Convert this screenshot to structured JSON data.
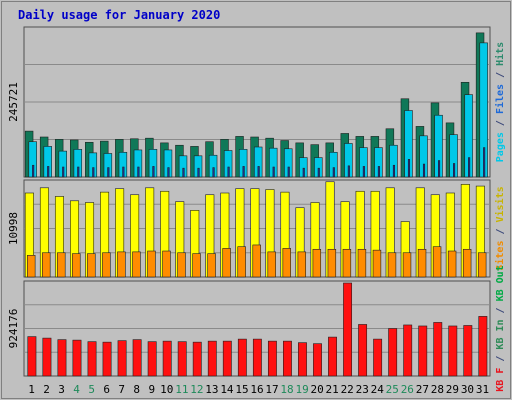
{
  "chart_data": {
    "type": "bar",
    "title": "Daily usage for January 2020",
    "categories": [
      "1",
      "2",
      "3",
      "4",
      "5",
      "6",
      "7",
      "8",
      "9",
      "10",
      "11",
      "12",
      "13",
      "14",
      "15",
      "16",
      "17",
      "18",
      "19",
      "20",
      "21",
      "22",
      "23",
      "24",
      "25",
      "26",
      "27",
      "28",
      "29",
      "30",
      "31"
    ],
    "weekend_days": [
      "4",
      "5",
      "11",
      "12",
      "18",
      "19",
      "25",
      "26"
    ],
    "panels": [
      {
        "id": "hits",
        "scale_label": "245721",
        "scale_max": 245721,
        "ylim": [
          0,
          255000
        ],
        "legend": [
          {
            "text": "Pages",
            "color": "#00c8e8"
          },
          {
            "text": " / ",
            "color": "#3d4a7a"
          },
          {
            "text": "Files",
            "color": "#1e6ad8"
          },
          {
            "text": " / ",
            "color": "#3d4a7a"
          },
          {
            "text": "Hits",
            "color": "#2e8b6e"
          }
        ],
        "series": [
          {
            "name": "Hits",
            "color": "#107858",
            "values": [
              78000,
              68000,
              64000,
              63000,
              59000,
              61000,
              64000,
              65000,
              66000,
              58000,
              54000,
              52000,
              60000,
              64000,
              69000,
              68000,
              66000,
              62000,
              58000,
              55000,
              58000,
              74000,
              69000,
              69000,
              82000,
              133000,
              86000,
              126000,
              92000,
              161000,
              245000
            ]
          },
          {
            "name": "Files",
            "color": "#00c8e8",
            "values": [
              60000,
              52000,
              44000,
              47000,
              41000,
              40000,
              42000,
              46000,
              47000,
              46000,
              36000,
              36000,
              37000,
              45000,
              47000,
              51000,
              49000,
              48000,
              33000,
              33000,
              42000,
              57000,
              50000,
              50000,
              54000,
              113000,
              70000,
              105000,
              72000,
              140000,
              228000
            ]
          },
          {
            "name": "Pages",
            "color": "#1c30a0",
            "values": [
              20000,
              18000,
              17000,
              17000,
              16000,
              16000,
              17000,
              17000,
              18000,
              16000,
              15000,
              15000,
              16000,
              17000,
              18000,
              18000,
              17000,
              17000,
              15000,
              15000,
              16000,
              19000,
              18000,
              18000,
              20000,
              30000,
              22000,
              28000,
              23000,
              33000,
              50000
            ]
          }
        ]
      },
      {
        "id": "visits",
        "scale_label": "10998",
        "scale_max": 10998,
        "ylim": [
          0,
          11200
        ],
        "legend": [
          {
            "text": "Sites",
            "color": "#f08c00"
          },
          {
            "text": " / ",
            "color": "#3d4a7a"
          },
          {
            "text": "Visits",
            "color": "#c8b400"
          }
        ],
        "series": [
          {
            "name": "Visits",
            "color": "#ffff00",
            "values": [
              9700,
              10300,
              9300,
              8800,
              8600,
              9800,
              10200,
              9500,
              10300,
              9900,
              8700,
              7700,
              9500,
              9700,
              10200,
              10200,
              10100,
              9800,
              8000,
              8600,
              10998,
              8700,
              9900,
              9900,
              10300,
              6400,
              10300,
              9500,
              9700,
              10700,
              10500
            ]
          },
          {
            "name": "Sites",
            "color": "#ff8c00",
            "values": [
              2500,
              2800,
              2800,
              2700,
              2700,
              2800,
              2900,
              2900,
              3000,
              3000,
              2800,
              2700,
              2700,
              3300,
              3500,
              3700,
              2900,
              3300,
              2900,
              3200,
              3200,
              3200,
              3200,
              3100,
              2800,
              2800,
              3200,
              3500,
              3000,
              3200,
              2800
            ]
          }
        ]
      },
      {
        "id": "kbytes",
        "scale_label": "924176",
        "scale_max": 924176,
        "ylim": [
          0,
          940000
        ],
        "legend": [
          {
            "text": "KB F",
            "color": "#e8141e"
          },
          {
            "text": " / ",
            "color": "#3d4a7a"
          },
          {
            "text": "KB In",
            "color": "#2e8b57"
          },
          {
            "text": " / ",
            "color": "#3d4a7a"
          },
          {
            "text": "KB Out",
            "color": "#00aa44"
          }
        ],
        "series": [
          {
            "name": "KB F",
            "color": "#ff1010",
            "values": [
              390000,
              375000,
              360000,
              355000,
              340000,
              335000,
              350000,
              360000,
              340000,
              345000,
              340000,
              335000,
              345000,
              345000,
              365000,
              365000,
              345000,
              345000,
              330000,
              320000,
              385000,
              920000,
              510000,
              365000,
              470000,
              505000,
              495000,
              530000,
              495000,
              500000,
              590000
            ]
          }
        ]
      }
    ]
  }
}
